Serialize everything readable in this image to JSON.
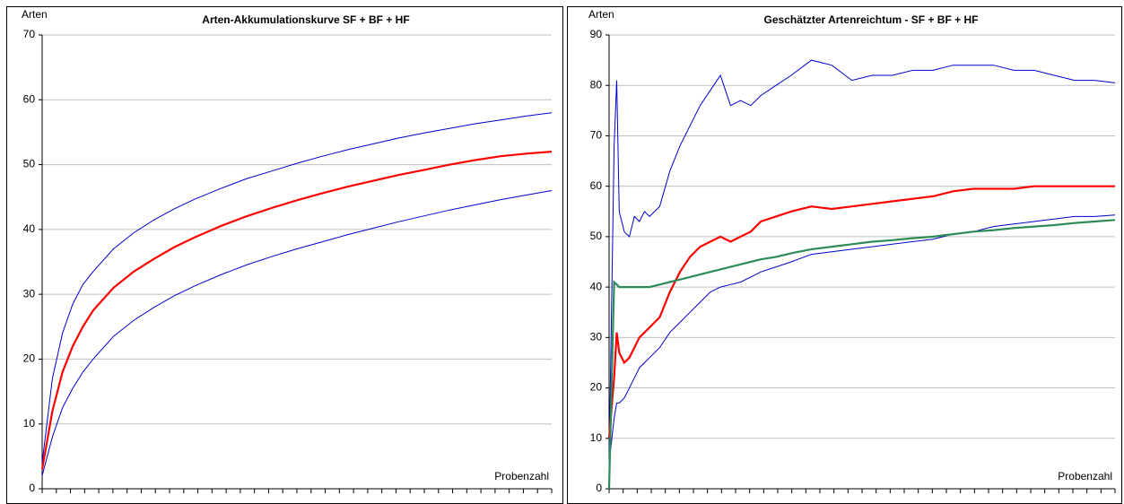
{
  "chart_data": [
    {
      "type": "line",
      "title": "Arten-Akkumulationskurve SF + BF + HF",
      "y_label": "Arten",
      "x_label": "Probenzahl",
      "x": [
        0,
        2,
        4,
        6,
        8,
        10,
        14,
        18,
        22,
        26,
        30,
        35,
        40,
        45,
        50,
        55,
        60,
        65,
        70,
        75,
        80,
        85,
        90,
        95,
        100
      ],
      "xlim": [
        0,
        100
      ],
      "ylim": [
        0,
        70
      ],
      "yticks": [
        0,
        10,
        20,
        30,
        40,
        50,
        60,
        70
      ],
      "grid": true,
      "series": [
        {
          "color": "#0000cc",
          "values": [
            4,
            17,
            24,
            28.5,
            31.5,
            33.5,
            37,
            39.5,
            41.5,
            43.2,
            44.7,
            46.3,
            47.8,
            49,
            50.2,
            51.3,
            52.3,
            53.2,
            54.1,
            54.9,
            55.6,
            56.3,
            56.9,
            57.5,
            58
          ]
        },
        {
          "color": "#ff0000",
          "values": [
            3,
            12,
            18,
            22,
            25,
            27.5,
            31,
            33.5,
            35.5,
            37.3,
            38.8,
            40.5,
            42,
            43.3,
            44.5,
            45.6,
            46.6,
            47.5,
            48.4,
            49.2,
            50,
            50.7,
            51.3,
            51.7,
            52
          ]
        },
        {
          "color": "#0000cc",
          "values": [
            2,
            8,
            12.5,
            15.5,
            18,
            20,
            23.5,
            26,
            28,
            29.8,
            31.3,
            33,
            34.5,
            35.8,
            37,
            38.1,
            39.2,
            40.2,
            41.2,
            42.1,
            43,
            43.8,
            44.6,
            45.3,
            46
          ]
        }
      ]
    },
    {
      "type": "line",
      "title": "Geschätzter Artenreichtum - SF + BF + HF",
      "y_label": "Arten",
      "x_label": "Probenzahl",
      "x": [
        0,
        1,
        1.5,
        2,
        3,
        4,
        5,
        6,
        7,
        8,
        10,
        12,
        14,
        16,
        18,
        20,
        22,
        24,
        26,
        28,
        30,
        33,
        36,
        40,
        44,
        48,
        52,
        56,
        60,
        64,
        68,
        72,
        76,
        80,
        84,
        88,
        92,
        96,
        100
      ],
      "xlim": [
        0,
        100
      ],
      "ylim": [
        0,
        90
      ],
      "yticks": [
        0,
        10,
        20,
        30,
        40,
        50,
        60,
        70,
        80,
        90
      ],
      "grid": true,
      "series": [
        {
          "color": "#0000cc",
          "values": [
            5,
            68,
            81,
            55,
            51,
            50,
            54,
            53,
            55,
            54,
            56,
            63,
            68,
            72,
            76,
            79,
            82,
            76,
            77,
            76,
            78,
            80,
            82,
            85,
            84,
            81,
            82,
            82,
            83,
            83,
            84,
            84,
            84,
            83,
            83,
            82,
            81,
            81,
            80.5
          ]
        },
        {
          "color": "#ff0000",
          "values": [
            10,
            22,
            31,
            27,
            25,
            26,
            28,
            30,
            31,
            32,
            34,
            39,
            43,
            46,
            48,
            49,
            50,
            49,
            50,
            51,
            53,
            54,
            55,
            56,
            55.5,
            56,
            56.5,
            57,
            57.5,
            58,
            59,
            59.5,
            59.5,
            59.5,
            60,
            60,
            60,
            60,
            60
          ]
        },
        {
          "color": "#0000cc",
          "values": [
            5,
            14,
            17,
            17,
            18,
            20,
            22,
            24,
            25,
            26,
            28,
            31,
            33,
            35,
            37,
            39,
            40,
            40.5,
            41,
            42,
            43,
            44,
            45,
            46.5,
            47,
            47.5,
            48,
            48.5,
            49,
            49.5,
            50.5,
            51,
            52,
            52.5,
            53,
            53.5,
            54,
            54,
            54.3
          ]
        },
        {
          "color": "#2e8b57",
          "values": [
            0,
            41,
            40.5,
            40,
            40,
            40,
            40,
            40,
            40,
            40,
            40.5,
            41,
            41.5,
            42,
            42.5,
            43,
            43.5,
            44,
            44.5,
            45,
            45.5,
            46,
            46.7,
            47.5,
            48,
            48.5,
            49,
            49.3,
            49.7,
            50,
            50.5,
            51,
            51.3,
            51.7,
            52,
            52.3,
            52.7,
            53,
            53.3
          ]
        }
      ]
    }
  ]
}
